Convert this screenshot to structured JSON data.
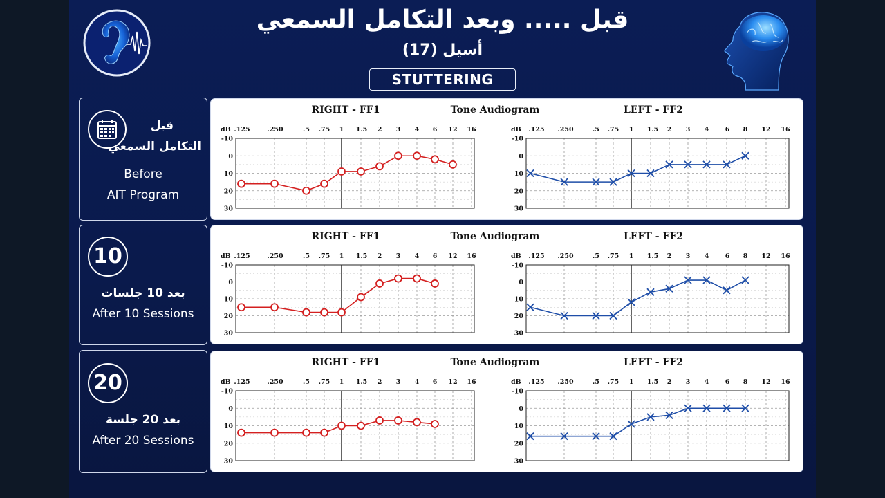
{
  "header": {
    "title": "قبل ..... وبعد التكامل السمعي",
    "subtitle": "أسيل (17)",
    "badge": "STUTTERING"
  },
  "logos": {
    "left": "ear-sound-wave-icon",
    "right": "head-brain-icon"
  },
  "rows": [
    {
      "ar_line1": "قبل",
      "ar_line2": "التكامل السمعي",
      "en_line1": "Before",
      "en_line2": "AIT Program",
      "icon": "calendar-icon"
    },
    {
      "number": "10",
      "ar_line1": "بعد 10 جلسات",
      "en_line1": "After 10 Sessions"
    },
    {
      "number": "20",
      "ar_line1": "بعد 20 جلسة",
      "en_line1": "After 20 Sessions"
    }
  ],
  "chart_labels": {
    "right_title": "RIGHT - FF1",
    "center_title": "Tone Audiogram",
    "left_title": "LEFT - FF2",
    "db_label": "dB"
  },
  "chart_data": [
    {
      "type": "line",
      "title": "Before AIT Program",
      "x_ticks": [
        ".125",
        ".250",
        ".5",
        ".75",
        "1",
        "1.5",
        "2",
        "3",
        "4",
        "6",
        "12",
        "16"
      ],
      "x_ticks_left": [
        ".125",
        ".250",
        ".5",
        ".75",
        "1",
        "1.5",
        "2",
        "3",
        "4",
        "6",
        "8",
        "12",
        "16"
      ],
      "y_ticks": [
        -10,
        0,
        10,
        20,
        30
      ],
      "ylim": [
        -10,
        30
      ],
      "y_inverted": true,
      "series": [
        {
          "name": "RIGHT - FF1",
          "color": "#d42020",
          "marker": "circle",
          "x": [
            ".125",
            ".250",
            ".5",
            ".75",
            "1",
            "1.5",
            "2",
            "3",
            "4",
            "6",
            "8"
          ],
          "values": [
            16,
            16,
            20,
            16,
            9,
            9,
            6,
            0,
            0,
            2,
            5
          ]
        },
        {
          "name": "LEFT - FF2",
          "color": "#1f4ea8",
          "marker": "x",
          "x": [
            ".125",
            ".250",
            ".5",
            ".75",
            "1",
            "1.5",
            "2",
            "3",
            "4",
            "6",
            "8"
          ],
          "values": [
            10,
            15,
            15,
            15,
            10,
            10,
            5,
            5,
            5,
            5,
            0
          ]
        }
      ]
    },
    {
      "type": "line",
      "title": "After 10 Sessions",
      "x_ticks": [
        ".125",
        ".250",
        ".5",
        ".75",
        "1",
        "1.5",
        "2",
        "3",
        "4",
        "6",
        "12",
        "16"
      ],
      "x_ticks_left": [
        ".125",
        ".250",
        ".5",
        ".75",
        "1",
        "1.5",
        "2",
        "3",
        "4",
        "6",
        "8",
        "12",
        "16"
      ],
      "y_ticks": [
        -10,
        0,
        10,
        20,
        30
      ],
      "ylim": [
        -10,
        30
      ],
      "y_inverted": true,
      "series": [
        {
          "name": "RIGHT - FF1",
          "color": "#d42020",
          "marker": "circle",
          "x": [
            ".125",
            ".250",
            ".5",
            ".75",
            "1",
            "1.5",
            "2",
            "3",
            "4",
            "6"
          ],
          "values": [
            15,
            15,
            18,
            18,
            18,
            9,
            1,
            -2,
            -2,
            1
          ]
        },
        {
          "name": "LEFT - FF2",
          "color": "#1f4ea8",
          "marker": "x",
          "x": [
            ".125",
            ".250",
            ".5",
            ".75",
            "1",
            "1.5",
            "2",
            "3",
            "4",
            "6",
            "8"
          ],
          "values": [
            15,
            20,
            20,
            20,
            12,
            6,
            4,
            -1,
            -1,
            5,
            -1
          ]
        }
      ]
    },
    {
      "type": "line",
      "title": "After 20 Sessions",
      "x_ticks": [
        ".125",
        ".250",
        ".5",
        ".75",
        "1",
        "1.5",
        "2",
        "3",
        "4",
        "6",
        "12",
        "16"
      ],
      "x_ticks_left": [
        ".125",
        ".250",
        ".5",
        ".75",
        "1",
        "1.5",
        "2",
        "3",
        "4",
        "6",
        "8",
        "12",
        "16"
      ],
      "y_ticks": [
        -10,
        0,
        10,
        20,
        30
      ],
      "ylim": [
        -10,
        30
      ],
      "y_inverted": true,
      "series": [
        {
          "name": "RIGHT - FF1",
          "color": "#d42020",
          "marker": "circle",
          "x": [
            ".125",
            ".250",
            ".5",
            ".75",
            "1",
            "1.5",
            "2",
            "3",
            "4",
            "6"
          ],
          "values": [
            14,
            14,
            14,
            14,
            10,
            10,
            7,
            7,
            8,
            9
          ]
        },
        {
          "name": "LEFT - FF2",
          "color": "#1f4ea8",
          "marker": "x",
          "x": [
            ".125",
            ".250",
            ".5",
            ".75",
            "1",
            "1.5",
            "2",
            "3",
            "4",
            "6",
            "8"
          ],
          "values": [
            16,
            16,
            16,
            16,
            9,
            5,
            4,
            0,
            0,
            0,
            0
          ]
        }
      ]
    }
  ]
}
